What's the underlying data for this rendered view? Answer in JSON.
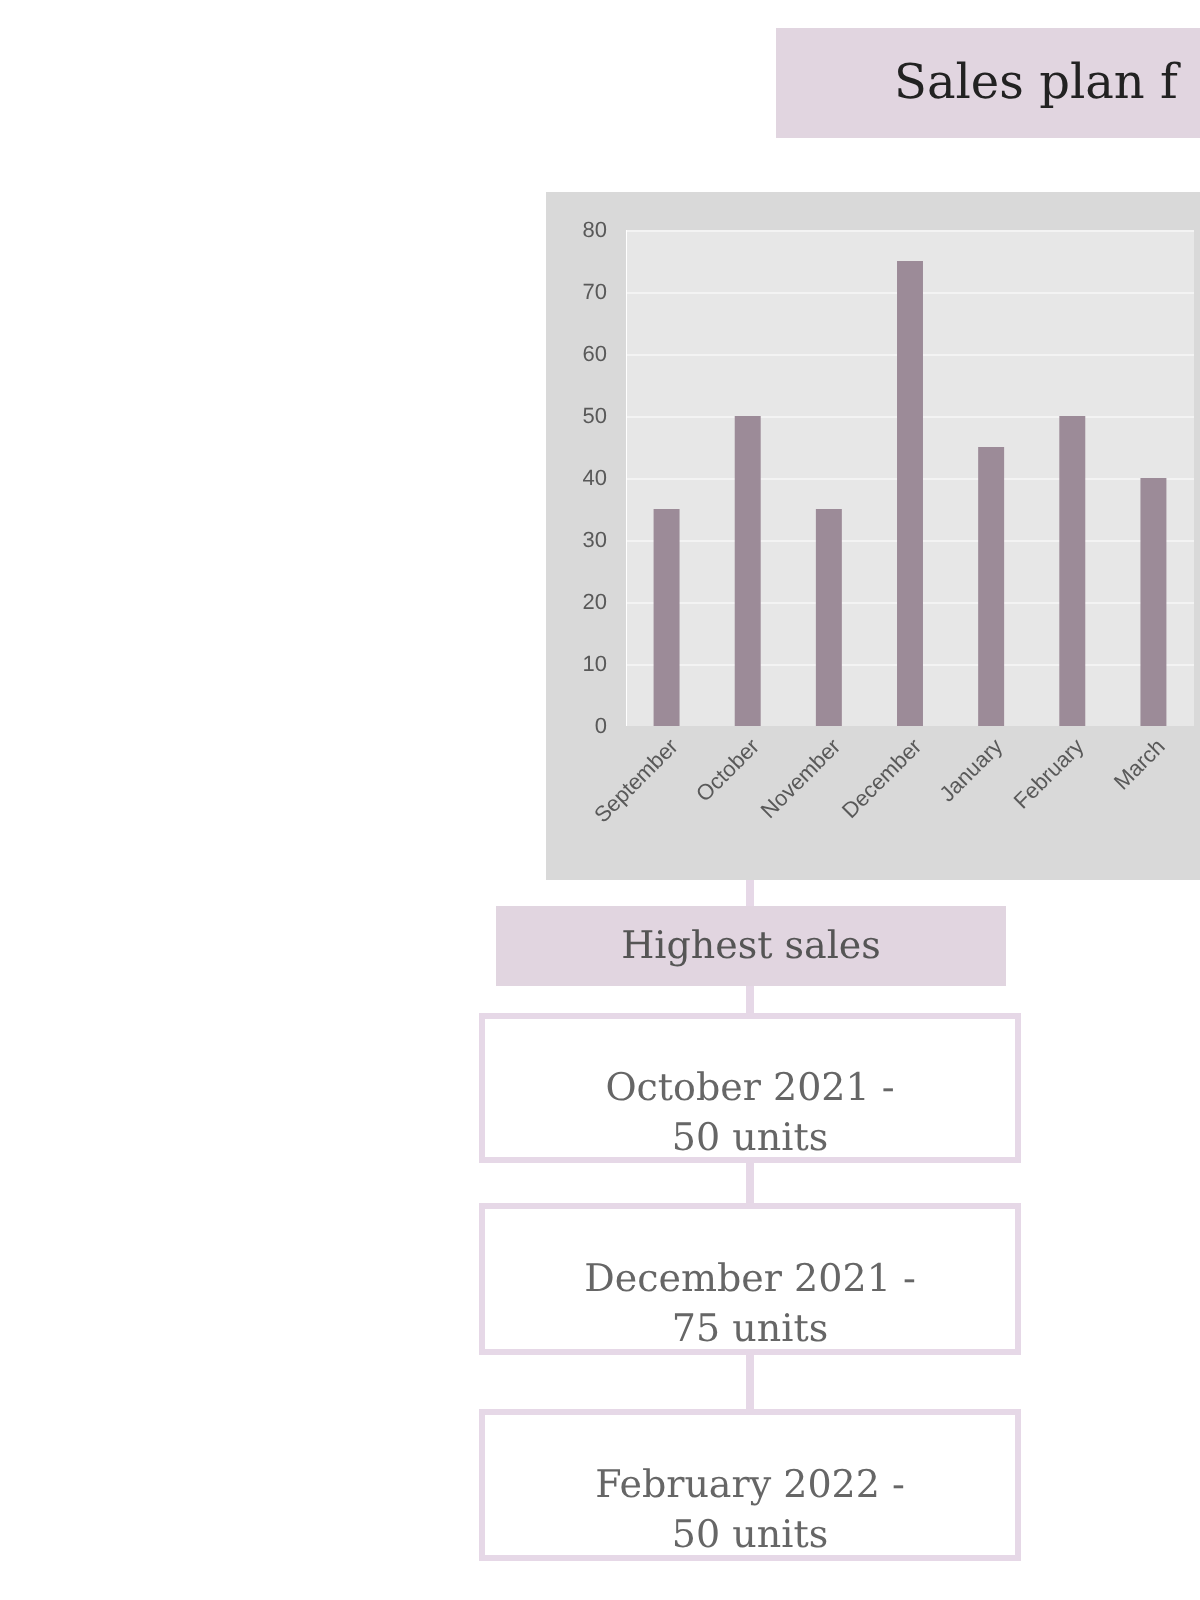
{
  "chart_data": {
    "type": "bar",
    "title": "Sales plan f",
    "categories": [
      "September",
      "October",
      "November",
      "December",
      "January",
      "February",
      "March"
    ],
    "values": [
      35,
      50,
      35,
      75,
      45,
      50,
      40
    ],
    "color": "#9c8b98",
    "ylim": [
      0,
      80
    ],
    "yticks": [
      0,
      10,
      20,
      30,
      40,
      50,
      60,
      70,
      80
    ],
    "grid": "y",
    "annotations": [
      "Highest sales",
      "October 2021 -\n50 units",
      "December 2021 -\n75 units",
      "February 2022  -\n50 units"
    ]
  }
}
